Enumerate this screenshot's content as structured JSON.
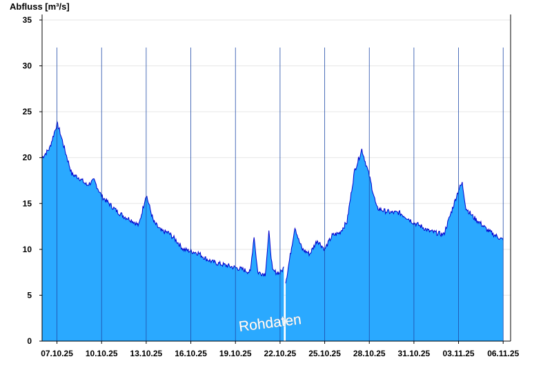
{
  "colors": {
    "fill": "#2aa9ff",
    "line": "#0000cc",
    "grid": "#e6e6e6",
    "axis": "#000000"
  },
  "chart_data": {
    "type": "area",
    "ylabel": "Abfluss [m³/s]",
    "ylim": [
      0,
      35
    ],
    "yticks": [
      0,
      5,
      10,
      15,
      20,
      25,
      30,
      35
    ],
    "xlim": [
      "2025-10-06",
      "2025-11-06"
    ],
    "xtick_labels": [
      "07.10.25",
      "10.10.25",
      "13.10.25",
      "16.10.25",
      "19.10.25",
      "22.10.25",
      "25.10.25",
      "28.10.25",
      "31.10.25",
      "03.11.25",
      "06.11.25"
    ],
    "gap": [
      "2025-10-22 06:00",
      "2025-10-22 09:00"
    ],
    "annotation": "Rohdaten",
    "grid": true,
    "series": [
      {
        "x": [
          "2025-10-06 00:00",
          "2025-10-06 12:00",
          "2025-10-07 00:00",
          "2025-10-07 04:00",
          "2025-10-07 12:00",
          "2025-10-08 00:00",
          "2025-10-08 12:00",
          "2025-10-09 00:00",
          "2025-10-09 12:00",
          "2025-10-10 00:00",
          "2025-10-10 12:00",
          "2025-10-11 00:00",
          "2025-10-11 12:00",
          "2025-10-12 00:00",
          "2025-10-12 12:00",
          "2025-10-13 00:00",
          "2025-10-13 12:00",
          "2025-10-14 00:00",
          "2025-10-14 12:00",
          "2025-10-15 00:00",
          "2025-10-15 12:00",
          "2025-10-16 00:00",
          "2025-10-16 12:00",
          "2025-10-17 00:00",
          "2025-10-17 12:00",
          "2025-10-18 00:00",
          "2025-10-18 12:00",
          "2025-10-19 00:00",
          "2025-10-19 12:00",
          "2025-10-20 00:00",
          "2025-10-20 06:00",
          "2025-10-20 12:00",
          "2025-10-21 00:00",
          "2025-10-21 06:00",
          "2025-10-21 12:00",
          "2025-10-22 00:00",
          "2025-10-22 06:00",
          "2025-10-22 09:00",
          "2025-10-22 12:00",
          "2025-10-23 00:00",
          "2025-10-23 06:00",
          "2025-10-23 12:00",
          "2025-10-24 00:00",
          "2025-10-24 12:00",
          "2025-10-25 00:00",
          "2025-10-25 12:00",
          "2025-10-26 00:00",
          "2025-10-26 12:00",
          "2025-10-27 00:00",
          "2025-10-27 12:00",
          "2025-10-28 00:00",
          "2025-10-28 12:00",
          "2025-10-29 00:00",
          "2025-10-29 12:00",
          "2025-10-30 00:00",
          "2025-10-30 12:00",
          "2025-10-31 00:00",
          "2025-10-31 12:00",
          "2025-11-01 00:00",
          "2025-11-01 12:00",
          "2025-11-02 00:00",
          "2025-11-02 12:00",
          "2025-11-03 00:00",
          "2025-11-03 06:00",
          "2025-11-03 12:00",
          "2025-11-04 00:00",
          "2025-11-04 12:00",
          "2025-11-05 00:00",
          "2025-11-05 12:00",
          "2025-11-06 00:00"
        ],
        "values": [
          20.0,
          21.0,
          23.7,
          23.0,
          21.0,
          18.2,
          17.8,
          17.0,
          17.5,
          15.8,
          15.0,
          14.2,
          13.6,
          13.2,
          12.6,
          16.0,
          13.0,
          12.0,
          11.8,
          11.0,
          10.0,
          9.8,
          9.6,
          9.0,
          8.6,
          8.4,
          8.2,
          8.0,
          7.8,
          7.5,
          11.5,
          7.5,
          7.3,
          11.8,
          7.6,
          7.4,
          8.0,
          6.5,
          7.5,
          12.5,
          11.0,
          10.0,
          9.5,
          11.0,
          10.0,
          11.5,
          11.8,
          13.0,
          18.5,
          20.9,
          18.0,
          14.5,
          14.2,
          14.0,
          14.0,
          13.5,
          12.9,
          12.5,
          12.0,
          11.8,
          11.6,
          14.0,
          16.5,
          17.2,
          14.5,
          13.5,
          12.8,
          12.0,
          11.5,
          11.0
        ]
      }
    ]
  }
}
